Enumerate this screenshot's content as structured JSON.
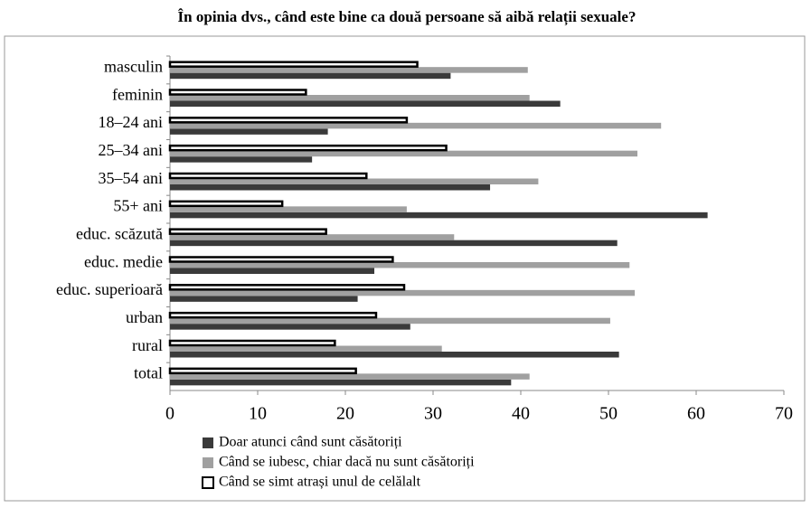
{
  "chart_data": {
    "type": "hbar",
    "title": "În opinia dvs., când este bine ca două persoane să aibă relații sexuale?",
    "categories": [
      "masculin",
      "feminin",
      "18–24 ani",
      "25–34 ani",
      "35–54 ani",
      "55+ ani",
      "educ. scăzută",
      "educ. medie",
      "educ. superioară",
      "urban",
      "rural",
      "total"
    ],
    "series": [
      {
        "name": "Doar atunci când sunt căsătoriți",
        "color": "#3a3a3a",
        "values": [
          32,
          44.5,
          18,
          16.2,
          36.5,
          61.3,
          51,
          23.3,
          21.4,
          27.4,
          51.2,
          38.9
        ]
      },
      {
        "name": "Când se iubesc, chiar dacă nu sunt căsătoriți",
        "color": "#a0a0a0",
        "values": [
          40.8,
          41,
          56,
          53.3,
          42,
          27,
          32.4,
          52.4,
          53,
          50.2,
          31,
          41
        ]
      },
      {
        "name": "Când se simt atrași unul de celălalt",
        "color": "#ffffff",
        "values": [
          28.2,
          15.5,
          27,
          31.5,
          22.4,
          12.8,
          17.8,
          25.4,
          26.7,
          23.5,
          18.8,
          21.2
        ]
      }
    ],
    "xlim": [
      0,
      70
    ],
    "xticks": [
      0,
      10,
      20,
      30,
      40,
      50,
      60,
      70
    ],
    "grid": false
  }
}
